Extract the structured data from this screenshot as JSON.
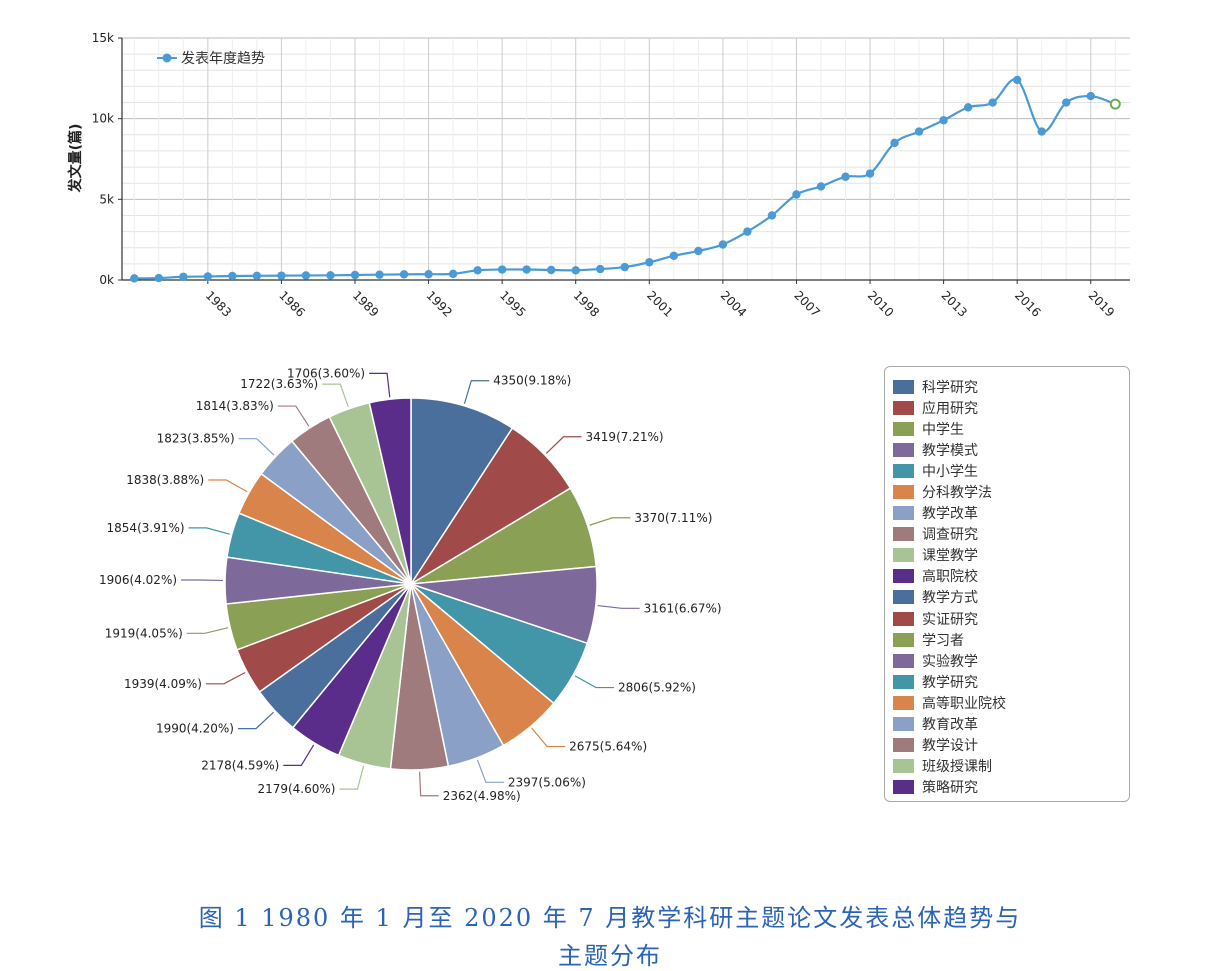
{
  "chart_data": [
    {
      "type": "line",
      "ylabel": "发文量(篇)",
      "legend": [
        "发表年度趋势"
      ],
      "legend_position": "top-left",
      "ylim": [
        0,
        15000
      ],
      "yticks": [
        "0k",
        "5k",
        "10k",
        "15k"
      ],
      "xticks": [
        "1983",
        "1986",
        "1989",
        "1992",
        "1995",
        "1998",
        "2001",
        "2004",
        "2007",
        "2010",
        "2013",
        "2016",
        "2019"
      ],
      "grid": true,
      "color": "#4a9ad6",
      "x": [
        1980,
        1981,
        1982,
        1983,
        1984,
        1985,
        1986,
        1987,
        1988,
        1989,
        1990,
        1991,
        1992,
        1993,
        1994,
        1995,
        1996,
        1997,
        1998,
        1999,
        2000,
        2001,
        2002,
        2003,
        2004,
        2005,
        2006,
        2007,
        2008,
        2009,
        2010,
        2011,
        2012,
        2013,
        2014,
        2015,
        2016,
        2017,
        2018,
        2019,
        2020
      ],
      "series": [
        {
          "name": "发表年度趋势",
          "values": [
            100,
            120,
            200,
            220,
            250,
            260,
            270,
            280,
            290,
            310,
            330,
            350,
            360,
            380,
            600,
            650,
            650,
            620,
            600,
            680,
            800,
            1100,
            1500,
            1800,
            2200,
            3000,
            4000,
            5300,
            5800,
            6400,
            6600,
            8500,
            9200,
            9900,
            10700,
            11000,
            12400,
            9200,
            11000,
            11400,
            10900
          ]
        }
      ]
    },
    {
      "type": "pie",
      "legend_position": "right",
      "categories": [
        "科学研究",
        "应用研究",
        "中学生",
        "教学模式",
        "中小学生",
        "分科教学法",
        "教学改革",
        "调查研究",
        "课堂教学",
        "高职院校",
        "教学方式",
        "实证研究",
        "学习者",
        "实验教学",
        "教学研究",
        "高等职业院校",
        "教育改革",
        "教学设计",
        "班级授课制",
        "策略研究"
      ],
      "values": [
        4350,
        3419,
        3370,
        3161,
        2806,
        2675,
        2397,
        2362,
        2179,
        2178,
        1990,
        1939,
        1919,
        1906,
        1854,
        1838,
        1823,
        1814,
        1722,
        1706
      ],
      "labels": [
        "4350(9.18%)",
        "3419(7.21%)",
        "3370(7.11%)",
        "3161(6.67%)",
        "2806(5.92%)",
        "2675(5.64%)",
        "2397(5.06%)",
        "2362(4.98%)",
        "2179(4.60%)",
        "2178(4.59%)",
        "1990(4.20%)",
        "1939(4.09%)",
        "1919(4.05%)",
        "1906(4.02%)",
        "1854(3.91%)",
        "1838(3.88%)",
        "1823(3.85%)",
        "1814(3.83%)",
        "1722(3.63%)",
        "1706(3.60%)"
      ],
      "colors": [
        "#4a6f9c",
        "#a14a4a",
        "#8aa054",
        "#7d6a9b",
        "#4395a8",
        "#d9844a",
        "#8aa0c6",
        "#a07b7d",
        "#a9c494",
        "#5a2d8a",
        "#4a6f9c",
        "#a14a4a",
        "#8aa054",
        "#7d6a9b",
        "#4395a8",
        "#d9844a",
        "#8aa0c6",
        "#a07b7d",
        "#a9c494",
        "#5a2d8a"
      ]
    }
  ],
  "caption": {
    "line1": "图 1 1980 年 1 月至 2020 年 7 月教学科研主题论文发表总体趋势与",
    "line2": "主题分布"
  }
}
